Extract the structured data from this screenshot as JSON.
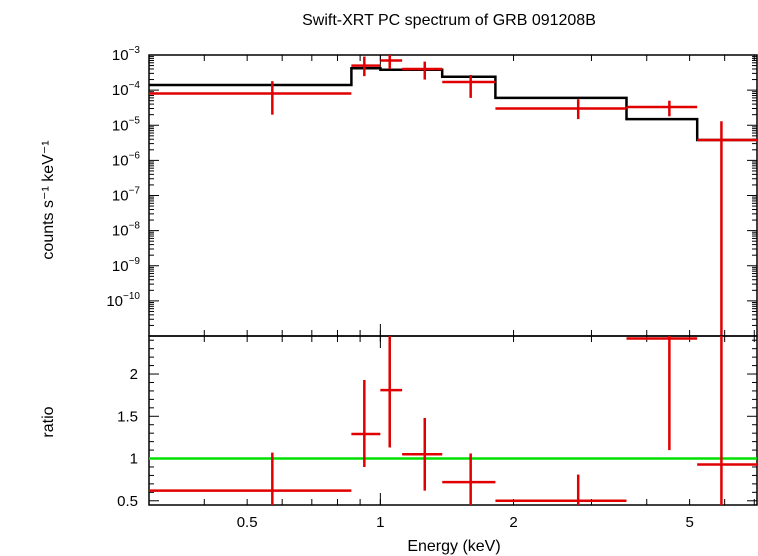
{
  "chart_data": {
    "type": "scatter",
    "title": "Swift-XRT PC spectrum of GRB 091208B",
    "xlabel": "Energy (keV)",
    "x_scale": "log",
    "xlim": [
      0.3,
      7.1
    ],
    "x_ticks": [
      {
        "value": 0.5,
        "label": "0.5"
      },
      {
        "value": 1,
        "label": "1"
      },
      {
        "value": 2,
        "label": "2"
      },
      {
        "value": 5,
        "label": "5"
      }
    ],
    "panels": [
      {
        "id": "spectrum",
        "ylabel": "counts s⁻¹ keV⁻¹",
        "y_scale": "log",
        "ylim": [
          1e-11,
          0.001
        ],
        "y_ticks": [
          {
            "value": 0.001,
            "base": "10",
            "exp": "−3"
          },
          {
            "value": 0.0001,
            "base": "10",
            "exp": "−4"
          },
          {
            "value": 1e-05,
            "base": "10",
            "exp": "−5"
          },
          {
            "value": 1e-06,
            "base": "10",
            "exp": "−6"
          },
          {
            "value": 1e-07,
            "base": "10",
            "exp": "−7"
          },
          {
            "value": 1e-08,
            "base": "10",
            "exp": "−8"
          },
          {
            "value": 1e-09,
            "base": "10",
            "exp": "−9"
          },
          {
            "value": 1e-10,
            "base": "10",
            "exp": "−10"
          }
        ],
        "model": {
          "edges": [
            0.3,
            0.86,
            1.0,
            1.38,
            1.82,
            3.6,
            5.2,
            7.1
          ],
          "values": [
            0.00014,
            0.00042,
            0.00038,
            0.00024,
            6e-05,
            1.5e-05,
            3.8e-06
          ]
        },
        "data": [
          {
            "x": 0.57,
            "x_lo": 0.3,
            "x_hi": 0.86,
            "y": 8e-05,
            "y_lo": 2e-05,
            "y_hi": 0.00018
          },
          {
            "x": 0.92,
            "x_lo": 0.86,
            "x_hi": 1.0,
            "y": 0.0005,
            "y_lo": 0.00025,
            "y_hi": 0.0009
          },
          {
            "x": 1.05,
            "x_lo": 1.0,
            "x_hi": 1.12,
            "y": 0.0007,
            "y_lo": 0.0004,
            "y_hi": 0.001
          },
          {
            "x": 1.26,
            "x_lo": 1.12,
            "x_hi": 1.38,
            "y": 0.0004,
            "y_lo": 0.0002,
            "y_hi": 0.00065
          },
          {
            "x": 1.6,
            "x_lo": 1.38,
            "x_hi": 1.82,
            "y": 0.00017,
            "y_lo": 6e-05,
            "y_hi": 0.00027
          },
          {
            "x": 2.8,
            "x_lo": 1.82,
            "x_hi": 3.6,
            "y": 3e-05,
            "y_lo": 1.5e-05,
            "y_hi": 5.5e-05
          },
          {
            "x": 4.5,
            "x_lo": 3.6,
            "x_hi": 5.2,
            "y": 3.3e-05,
            "y_lo": 1.8e-05,
            "y_hi": 5e-05
          },
          {
            "x": 5.9,
            "x_lo": 5.2,
            "x_hi": 7.1,
            "y": 3.8e-06,
            "y_lo": 1e-11,
            "y_hi": 1.3e-05
          }
        ]
      },
      {
        "id": "ratio",
        "ylabel": "ratio",
        "y_scale": "linear",
        "ylim": [
          0.45,
          2.45
        ],
        "y_ticks": [
          {
            "value": 0.5,
            "label": "0.5"
          },
          {
            "value": 1,
            "label": "1"
          },
          {
            "value": 1.5,
            "label": "1.5"
          },
          {
            "value": 2,
            "label": "2"
          }
        ],
        "reference_line": 1,
        "data": [
          {
            "x": 0.57,
            "x_lo": 0.3,
            "x_hi": 0.86,
            "y": 0.62,
            "y_lo": 0.45,
            "y_hi": 1.07
          },
          {
            "x": 0.92,
            "x_lo": 0.86,
            "x_hi": 1.0,
            "y": 1.29,
            "y_lo": 0.9,
            "y_hi": 1.93
          },
          {
            "x": 1.05,
            "x_lo": 1.0,
            "x_hi": 1.12,
            "y": 1.81,
            "y_lo": 1.13,
            "y_hi": 2.45
          },
          {
            "x": 1.26,
            "x_lo": 1.12,
            "x_hi": 1.38,
            "y": 1.05,
            "y_lo": 0.62,
            "y_hi": 1.48
          },
          {
            "x": 1.6,
            "x_lo": 1.38,
            "x_hi": 1.82,
            "y": 0.72,
            "y_lo": 0.45,
            "y_hi": 1.06
          },
          {
            "x": 2.8,
            "x_lo": 1.82,
            "x_hi": 3.6,
            "y": 0.5,
            "y_lo": 0.45,
            "y_hi": 0.81
          },
          {
            "x": 4.5,
            "x_lo": 3.6,
            "x_hi": 5.2,
            "y": 2.42,
            "y_lo": 1.1,
            "y_hi": 2.45
          },
          {
            "x": 5.9,
            "x_lo": 5.2,
            "x_hi": 7.1,
            "y": 0.93,
            "y_lo": 0.45,
            "y_hi": 2.45
          }
        ]
      }
    ]
  }
}
